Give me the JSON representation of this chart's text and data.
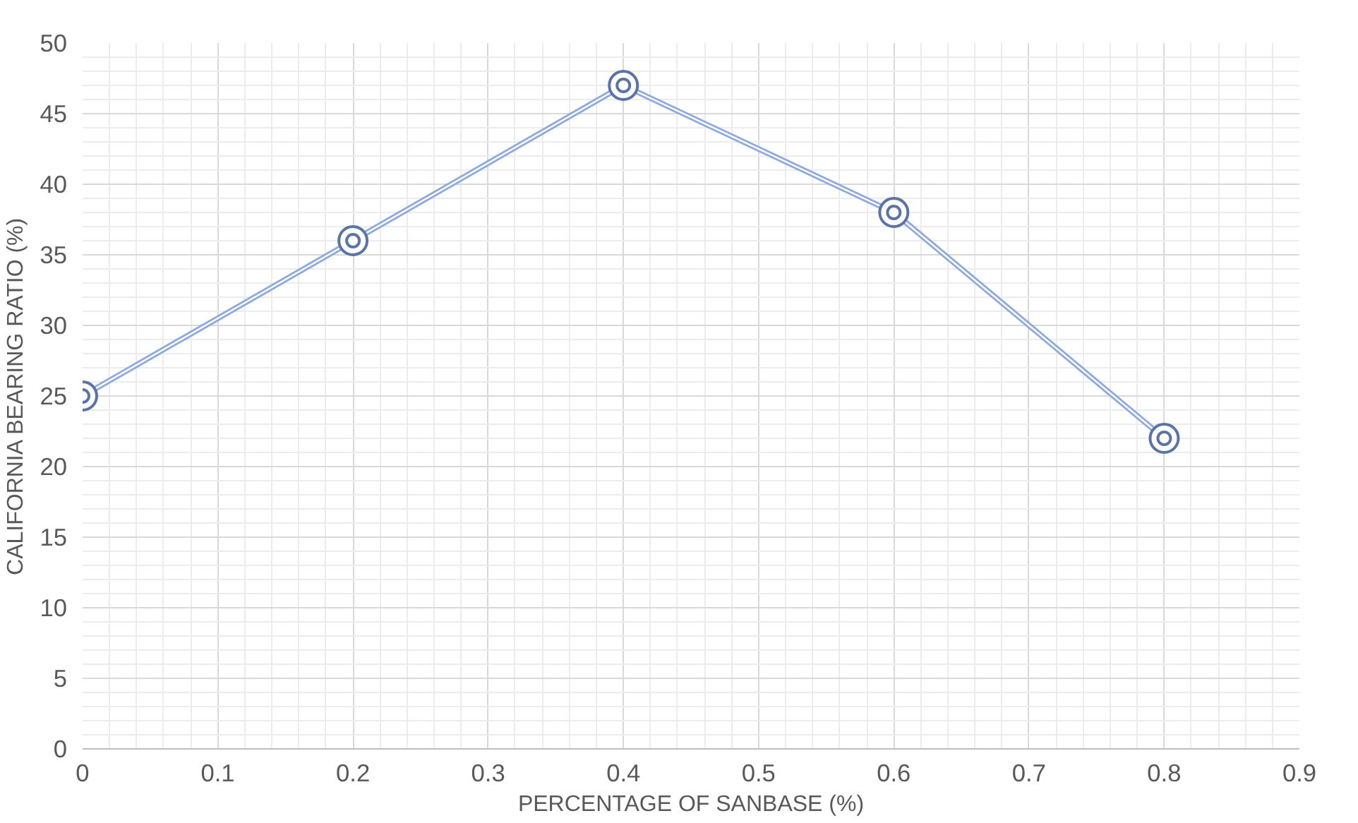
{
  "chart_data": {
    "type": "line",
    "xlabel": "PERCENTAGE OF SANBASE (%)",
    "ylabel": "CALIFORNIA BEARING RATIO (%)",
    "x": [
      0,
      0.2,
      0.4,
      0.6,
      0.8
    ],
    "series": [
      {
        "color": "#8faadc",
        "values": [
          25,
          36,
          47,
          38,
          22
        ]
      }
    ],
    "xlim": [
      0,
      0.9
    ],
    "xticks": [
      0,
      0.1,
      0.2,
      0.3,
      0.4,
      0.5,
      0.6,
      0.7,
      0.8,
      0.9
    ],
    "ylim": [
      0,
      50
    ],
    "yticks": [
      0,
      5,
      10,
      15,
      20,
      25,
      30,
      35,
      40,
      45,
      50
    ],
    "grid": true,
    "marker": "circle",
    "line_style": "solid"
  }
}
